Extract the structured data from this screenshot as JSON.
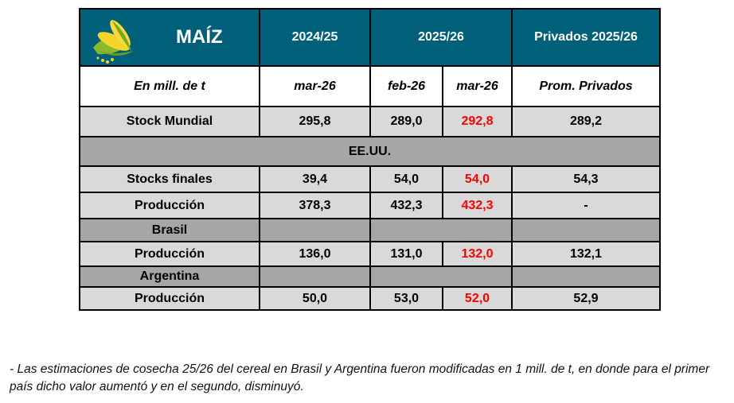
{
  "header": {
    "title": "MAÍZ",
    "col_2024": "2024/25",
    "col_2025": "2025/26",
    "col_priv": "Privados 2025/26"
  },
  "subheader": {
    "unit": "En mill. de t",
    "c1": "mar-26",
    "c2": "feb-26",
    "c3": "mar-26",
    "c4": "Prom. Privados"
  },
  "rows": {
    "stock_mundial": {
      "label": "Stock Mundial",
      "v": [
        "295,8",
        "289,0",
        "292,8",
        "289,2"
      ]
    },
    "eeuu": {
      "label": "EE.UU."
    },
    "stocks_finales": {
      "label": "Stocks finales",
      "v": [
        "39,4",
        "54,0",
        "54,0",
        "54,3"
      ]
    },
    "prod_eeuu": {
      "label": "Producción",
      "v": [
        "378,3",
        "432,3",
        "432,3",
        "-"
      ]
    },
    "brasil": {
      "label": "Brasil"
    },
    "prod_brasil": {
      "label": "Producción",
      "v": [
        "136,0",
        "131,0",
        "132,0",
        "132,1"
      ]
    },
    "argentina": {
      "label": "Argentina"
    },
    "prod_arg": {
      "label": "Producción",
      "v": [
        "50,0",
        "53,0",
        "52,0",
        "52,9"
      ]
    }
  },
  "colors": {
    "header": "#00607a",
    "highlight": "#ff0000",
    "light_row": "#d9d9d9",
    "dark_row": "#a6a6a6"
  },
  "footnote": "- Las estimaciones de cosecha 25/26 del cereal en Brasil y Argentina fueron modificadas en 1 mill. de t, en donde para el primer país dicho valor aumentó y en el segundo, disminuyó."
}
